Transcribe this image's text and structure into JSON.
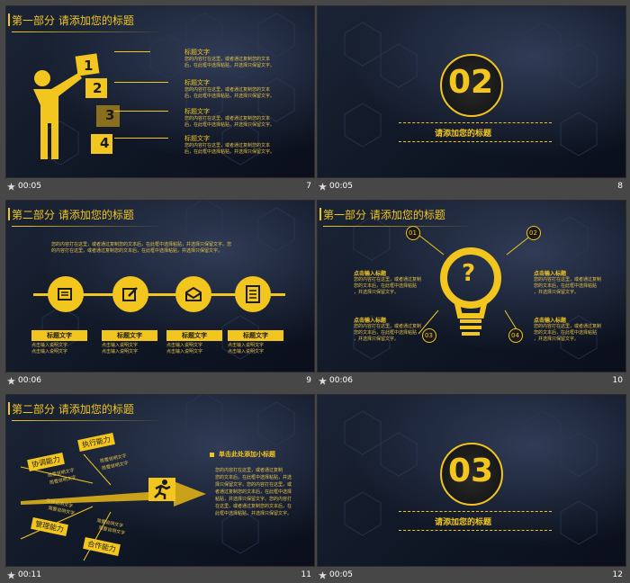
{
  "slides": [
    {
      "title": "第一部分 请添加您的标题",
      "time": "00:05",
      "num": "7",
      "blocks": [
        "1",
        "2",
        "3",
        "4"
      ],
      "items": [
        {
          "head": "标题文字",
          "body1": "您的内容打在这里，或者通过复制您的文本",
          "body2": "后，在此框中选择粘贴，并选择只保留文字。"
        },
        {
          "head": "标题文字",
          "body1": "您的内容打在这里，或者通过复制您的文本",
          "body2": "后，在此框中选择粘贴，并选择只保留文字。"
        },
        {
          "head": "标题文字",
          "body1": "您的内容打在这里，或者通过复制您的文本",
          "body2": "后，在此框中选择粘贴，并选择只保留文字。"
        },
        {
          "head": "标题文字",
          "body1": "您的内容打在这里，或者通过复制您的文本",
          "body2": "后，在此框中选择粘贴，并选择只保留文字。"
        }
      ]
    },
    {
      "big": "02",
      "caption": "请添加您的标题",
      "time": "00:05",
      "num": "8"
    },
    {
      "title": "第二部分 请添加您的标题",
      "time": "00:06",
      "num": "9",
      "intro1": "您的内容打在这里，或者通过复制您的文本后，在此框中选择粘贴，并选择只保留文字。您",
      "intro2": "的内容打在这里，或者通过复制您的文本后，在此框中选择粘贴，并选择只保留文字。",
      "cols": [
        {
          "head": "标题文字",
          "line1": "点击输入说明文字",
          "line2": "点击输入说明文字"
        },
        {
          "head": "标题文字",
          "line1": "点击输入说明文字",
          "line2": "点击输入说明文字"
        },
        {
          "head": "标题文字",
          "line1": "点击输入说明文字",
          "line2": "点击输入说明文字"
        },
        {
          "head": "标题文字",
          "line1": "点击输入说明文字",
          "line2": "点击输入说明文字"
        }
      ]
    },
    {
      "title": "第一部分 请添加您的标题",
      "time": "00:06",
      "num": "10",
      "nums": [
        "01",
        "02",
        "03",
        "04"
      ],
      "q": "?",
      "points": [
        {
          "head": "点击输入标题",
          "b1": "您的内容打在这里，或者通过复制",
          "b2": "您的文本后，在此框中选择粘贴",
          "b3": "，并选择只保留文字。"
        },
        {
          "head": "点击输入标题",
          "b1": "您的内容打在这里，或者通过复制",
          "b2": "您的文本后，在此框中选择粘贴",
          "b3": "，并选择只保留文字。"
        },
        {
          "head": "点击输入标题",
          "b1": "您的内容打在这里，或者通过复制",
          "b2": "您的文本后，在此框中选择粘贴",
          "b3": "，并选择只保留文字。"
        },
        {
          "head": "点击输入标题",
          "b1": "您的内容打在这里，或者通过复制",
          "b2": "您的文本后，在此框中选择粘贴",
          "b3": "，并选择只保留文字。"
        }
      ]
    },
    {
      "title": "第二部分 请添加您的标题",
      "time": "00:11",
      "num": "11",
      "tags": [
        "协调能力",
        "执行能力",
        "管理能力",
        "合作能力"
      ],
      "tagtext": "简要说明文字",
      "subtitle": "单击此处添加小标题",
      "para": [
        "您的内容打在这里，或者通过复制",
        "您的文本后，在此框中选择粘贴，并选",
        "择只保留文字。您的内容打在这里，或",
        "者通过复制您的文本后，在此框中选择",
        "粘贴，并选择只保留文字。您的内容打",
        "在这里，或者通过复制您的文本后，在",
        "此框中选择粘贴，并选择只保留文字。"
      ]
    },
    {
      "big": "03",
      "caption": "请添加您的标题",
      "time": "00:05",
      "num": "12"
    }
  ]
}
